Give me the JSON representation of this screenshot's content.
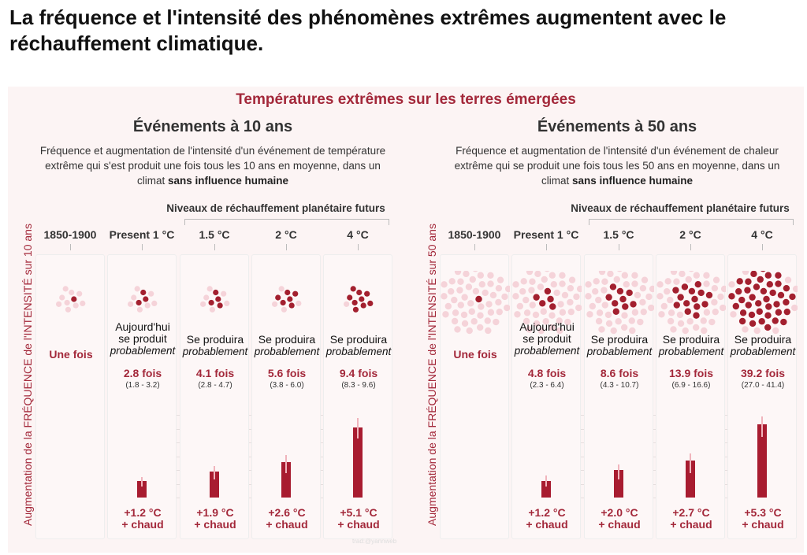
{
  "title": "La fréquence et l'intensité des phénomènes extrêmes augmentent avec le réchauffement climatique.",
  "panel_title": "Températures extrêmes sur les terres émergées",
  "watermark": "trad:@yannweb",
  "colors": {
    "accent": "#a3283a",
    "bar": "#a81c30",
    "dot_dark": "#a3202f",
    "dot_light": "#f5d3d9"
  },
  "chart_data": [
    {
      "type": "bar",
      "title": "Événements à 10 ans",
      "description_parts": [
        "Fréquence et augmentation de l'intensité d'un événement de température extrême qui s'est produit une fois tous les 10 ans en moyenne, dans un climat ",
        "sans influence humaine"
      ],
      "future_label": "Niveaux de réchauffement planétaire futurs",
      "ylabel": "Augmentation de la FRÉQUENCE de l'INTENSITÉ sur 10 ans",
      "ylim": [
        0,
        6
      ],
      "yticks": [
        "0 °C",
        "+1 °C",
        "+2 °C",
        "+3 °C",
        "+4 °C",
        "+5 °C",
        "+6 °C"
      ],
      "total_dots": 10,
      "categories": [
        "1850-1900",
        "Present 1 °C",
        "1.5 °C",
        "2 °C",
        "4 °C"
      ],
      "dark_dots": [
        1,
        3,
        4,
        6,
        9
      ],
      "likelihood": [
        "",
        "Aujourd'hui|se produit|probablement",
        "Se produira|probablement",
        "Se produira|probablement",
        "Se produira|probablement"
      ],
      "baseline_label": "Une fois",
      "frequency": [
        "",
        "2.8 fois",
        "4.1 fois",
        "5.6 fois",
        "9.4 fois"
      ],
      "frequency_range": [
        "",
        "(1.8 - 3.2)",
        "(2.8 - 4.7)",
        "(3.8 - 6.0)",
        "(8.3 - 9.6)"
      ],
      "values": [
        null,
        1.2,
        1.9,
        2.6,
        5.1
      ],
      "error_low": [
        null,
        0.8,
        1.3,
        1.8,
        4.3
      ],
      "error_high": [
        null,
        1.5,
        2.3,
        3.1,
        5.8
      ],
      "value_labels": [
        "",
        "+1.2 °C",
        "+1.9 °C",
        "+2.6 °C",
        "+5.1 °C"
      ],
      "value_suffix": "+ chaud"
    },
    {
      "type": "bar",
      "title": "Événements à 50 ans",
      "description_parts": [
        "Fréquence et augmentation de l'intensité d'un événement de chaleur extrême qui se produit une fois tous les 50 ans en moyenne, dans un climat ",
        "sans influence humaine"
      ],
      "future_label": "Niveaux de réchauffement planétaire futurs",
      "ylabel": "Augmentation de la FRÉQUENCE de l'INTENSITÉ sur 50 ans",
      "ylim": [
        0,
        6
      ],
      "yticks": [
        "0 °C",
        "+1 °C",
        "+2 °C",
        "+3 °C",
        "+4 °C",
        "+5 °C",
        "+6 °C"
      ],
      "total_dots": 50,
      "categories": [
        "1850-1900",
        "Present 1 °C",
        "1.5 °C",
        "2 °C",
        "4 °C"
      ],
      "dark_dots": [
        1,
        5,
        9,
        14,
        39
      ],
      "likelihood": [
        "",
        "Aujourd'hui|se produit|probablement",
        "Se produira|probablement",
        "Se produira|probablement",
        "Se produira|probablement"
      ],
      "baseline_label": "Une fois",
      "frequency": [
        "",
        "4.8 fois",
        "8.6 fois",
        "13.9 fois",
        "39.2 fois"
      ],
      "frequency_range": [
        "",
        "(2.3 - 6.4)",
        "(4.3 - 10.7)",
        "(6.9 - 16.6)",
        "(27.0 - 41.4)"
      ],
      "values": [
        null,
        1.2,
        2.0,
        2.7,
        5.3
      ],
      "error_low": [
        null,
        0.8,
        1.3,
        1.8,
        4.4
      ],
      "error_high": [
        null,
        1.6,
        2.4,
        3.2,
        5.9
      ],
      "value_labels": [
        "",
        "+1.2 °C",
        "+2.0 °C",
        "+2.7 °C",
        "+5.3 °C"
      ],
      "value_suffix": "+ chaud"
    }
  ]
}
